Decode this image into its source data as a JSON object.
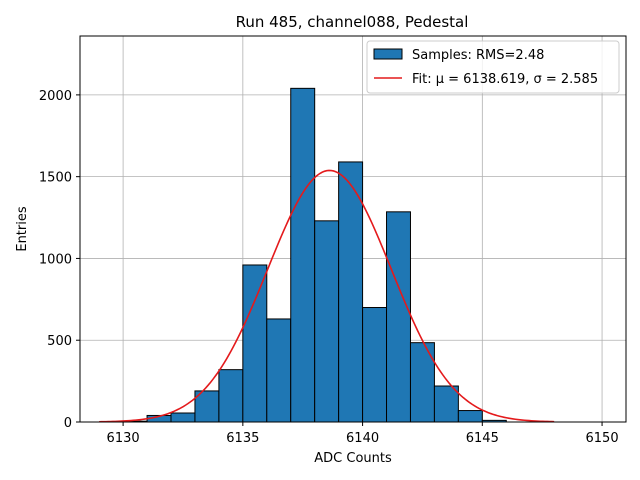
{
  "chart_data": {
    "type": "bar",
    "title": "Run 485, channel088, Pedestal",
    "xlabel": "ADC Counts",
    "ylabel": "Entries",
    "xlim": [
      6128.2,
      6151.0
    ],
    "ylim": [
      0,
      2360
    ],
    "xticks": [
      6130,
      6135,
      6140,
      6145,
      6150
    ],
    "yticks": [
      0,
      500,
      1000,
      1500,
      2000
    ],
    "grid": true,
    "legend_position": "top-right",
    "histogram": {
      "bin_width": 1,
      "bin_edges_start": 6130,
      "values": [
        5,
        40,
        55,
        190,
        320,
        960,
        630,
        2040,
        1230,
        1590,
        700,
        1285,
        485,
        220,
        70,
        10,
        0
      ],
      "face_color": "#1f77b4",
      "edge_color": "#000000"
    },
    "fit": {
      "mu": 6138.619,
      "sigma": 2.585,
      "amplitude": 1538,
      "x_range": [
        6129,
        6148
      ],
      "color": "#e41a1c"
    },
    "legend": [
      {
        "label": "Samples: RMS=2.48",
        "kind": "patch"
      },
      {
        "label": "Fit: μ = 6138.619, σ = 2.585",
        "kind": "line"
      }
    ]
  }
}
